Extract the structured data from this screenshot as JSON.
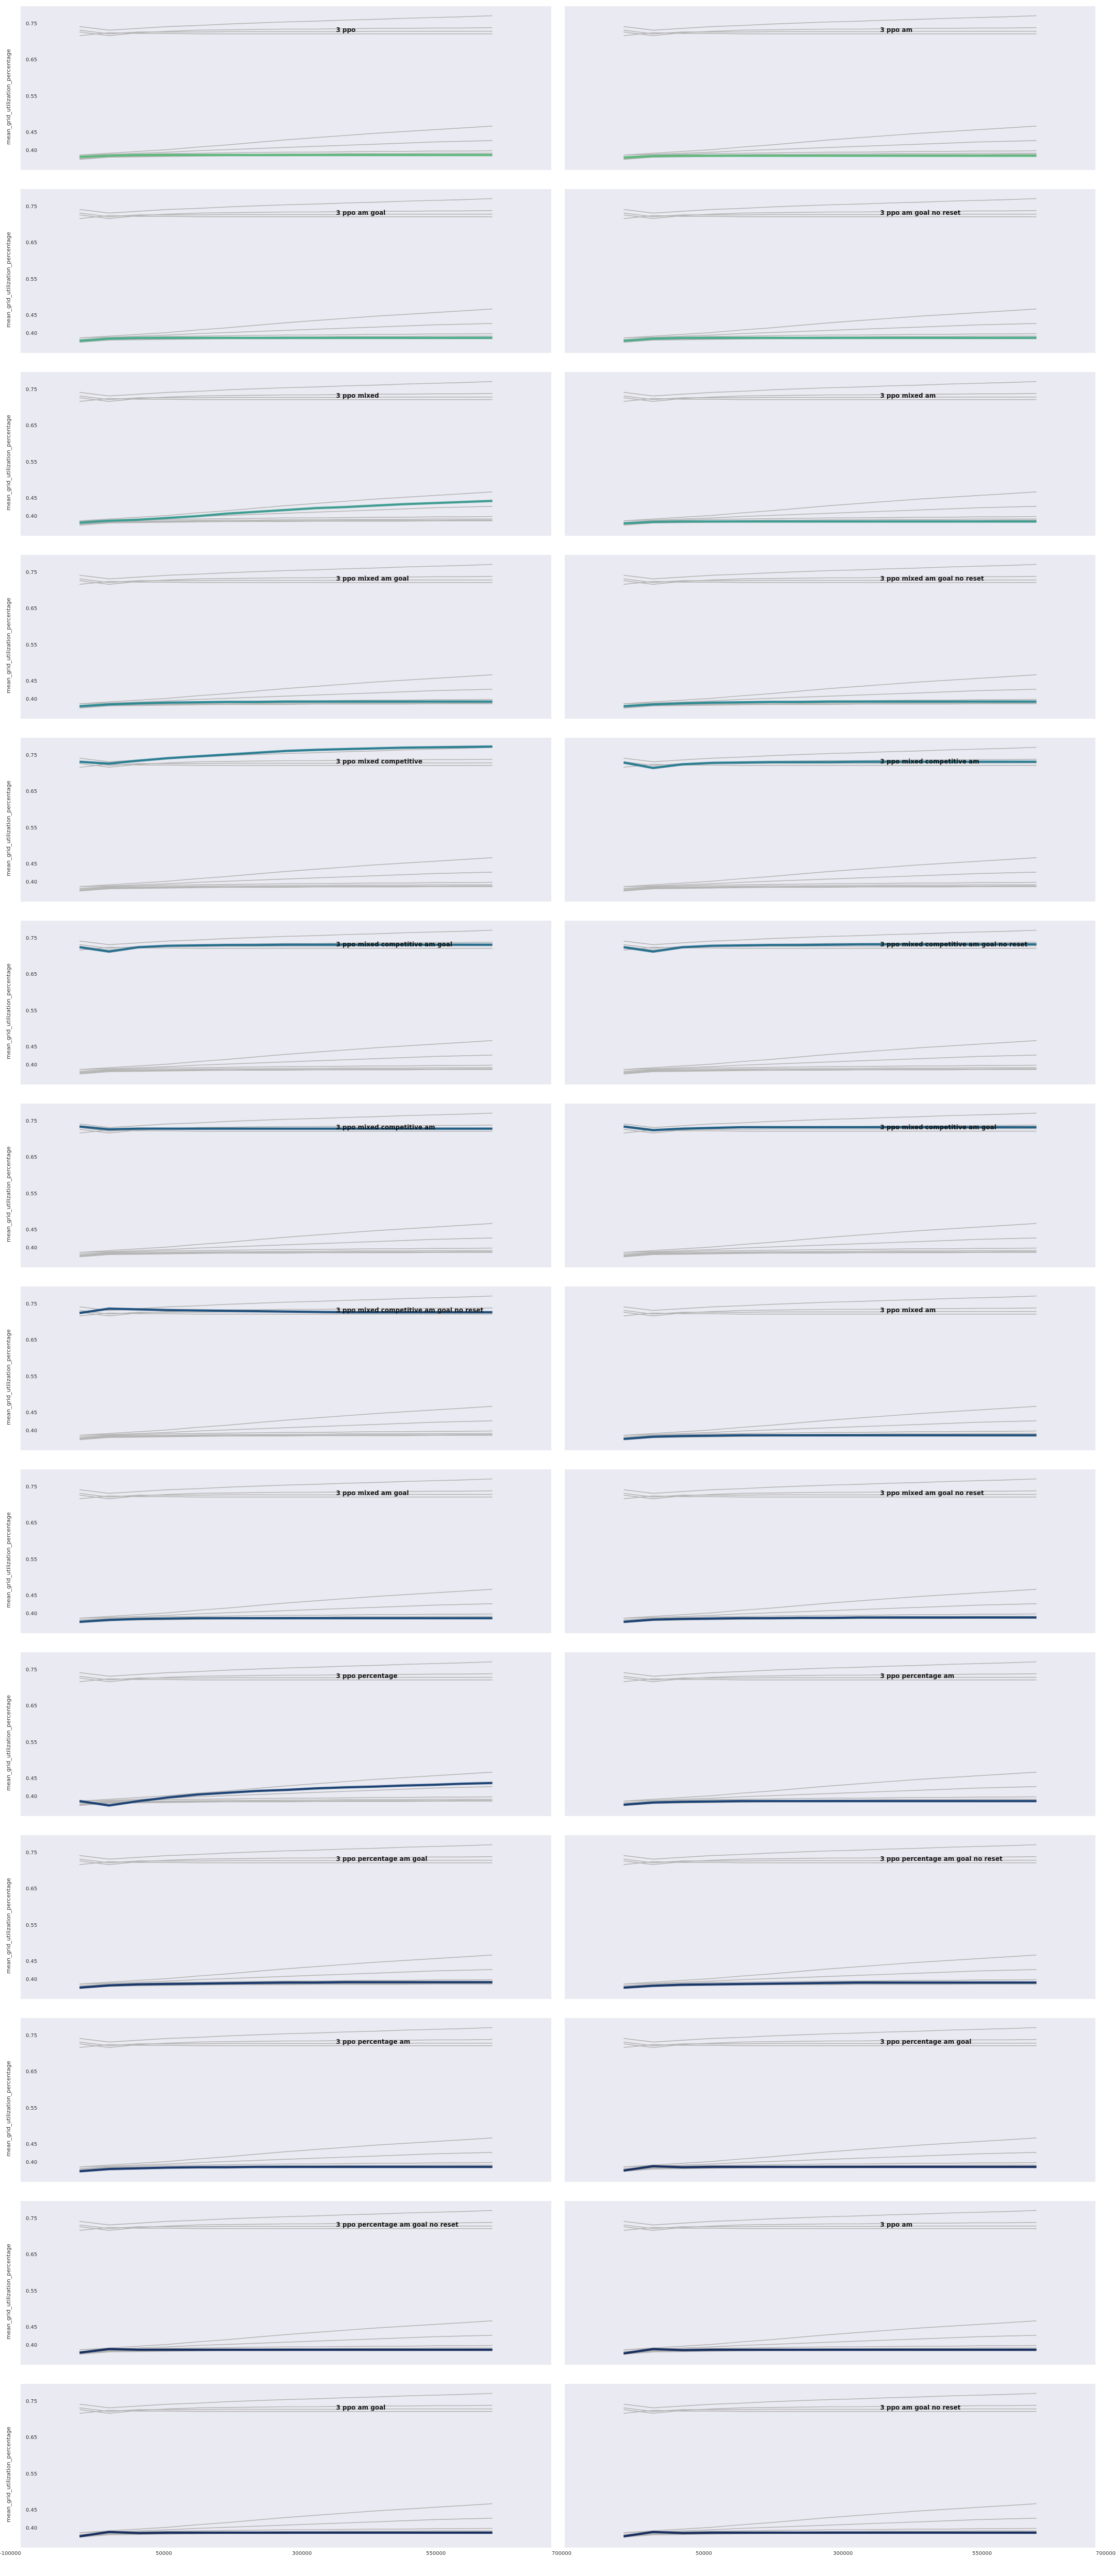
{
  "chart_data": {
    "type": "line",
    "ylabel": "mean_grid_utilization_percentage",
    "y_ticks": [
      "0.40",
      "0.45",
      "0.55",
      "0.65",
      "0.75"
    ],
    "x_ticks": [
      "-100000",
      "50000",
      "300000",
      "550000",
      "700000"
    ],
    "x_ticks_tail": "0",
    "highlight_colors": [
      "#5fb87e",
      "#4cab8a",
      "#3e9c91",
      "#2f8a93",
      "#2a7d91",
      "#256d8c",
      "#225e84",
      "#1f4f7b",
      "#1c4374",
      "#19386a",
      "#172e5e"
    ],
    "background_color": "#eaeaf2",
    "panels": [
      {
        "title": "3 ppo",
        "highlight": 0
      },
      {
        "title": "3 ppo am",
        "highlight": 0
      },
      {
        "title": "3 ppo am goal",
        "highlight": 1
      },
      {
        "title": "3 ppo am goal no reset",
        "highlight": 1
      },
      {
        "title": "3 ppo mixed",
        "highlight": 2
      },
      {
        "title": "3 ppo mixed am",
        "highlight": 2
      },
      {
        "title": "3 ppo mixed am goal",
        "highlight": 3
      },
      {
        "title": "3 ppo mixed am goal no reset",
        "highlight": 3
      },
      {
        "title": "3 ppo mixed competitive",
        "highlight": 4
      },
      {
        "title": "3 ppo mixed competitive am",
        "highlight": 4
      },
      {
        "title": "3 ppo mixed competitive am goal",
        "highlight": 5
      },
      {
        "title": "3 ppo mixed competitive am goal no reset",
        "highlight": 5
      },
      {
        "title": "3 ppo mixed competitive am",
        "highlight": 6
      },
      {
        "title": "3 ppo mixed competitive am goal",
        "highlight": 6
      },
      {
        "title": "3 ppo mixed competitive am goal no reset",
        "highlight": 7
      },
      {
        "title": "3 ppo mixed am",
        "highlight": 7
      },
      {
        "title": "3 ppo mixed am goal",
        "highlight": 7
      },
      {
        "title": "3 ppo mixed am goal no reset",
        "highlight": 8
      },
      {
        "title": "3 ppo percentage",
        "highlight": 8
      },
      {
        "title": "3 ppo percentage am",
        "highlight": 8
      },
      {
        "title": "3 ppo percentage am goal",
        "highlight": 9
      },
      {
        "title": "3 ppo percentage am goal no reset",
        "highlight": 9
      },
      {
        "title": "3 ppo percentage am",
        "highlight": 9
      },
      {
        "title": "3 ppo percentage am goal",
        "highlight": 10
      },
      {
        "title": "3 ppo percentage am goal no reset",
        "highlight": 10
      },
      {
        "title": "3 ppo am",
        "highlight": 10
      },
      {
        "title": "3 ppo am goal",
        "highlight": 10
      },
      {
        "title": "3 ppo am goal no reset",
        "highlight": 10
      }
    ],
    "x": [
      0,
      50000,
      100000,
      150000,
      200000,
      250000,
      300000,
      350000,
      400000,
      450000,
      500000,
      550000,
      600000,
      650000,
      700000
    ],
    "background_series": [
      [
        0.745,
        0.735,
        0.74,
        0.745,
        0.748,
        0.752,
        0.755,
        0.758,
        0.76,
        0.763,
        0.765,
        0.768,
        0.77,
        0.772,
        0.775
      ],
      [
        0.73,
        0.72,
        0.728,
        0.732,
        0.735,
        0.736,
        0.737,
        0.738,
        0.738,
        0.739,
        0.74,
        0.74,
        0.741,
        0.741,
        0.742
      ],
      [
        0.735,
        0.725,
        0.73,
        0.73,
        0.73,
        0.731,
        0.731,
        0.731,
        0.731,
        0.731,
        0.732,
        0.732,
        0.732,
        0.732,
        0.732
      ],
      [
        0.72,
        0.728,
        0.726,
        0.726,
        0.725,
        0.725,
        0.725,
        0.725,
        0.725,
        0.725,
        0.725,
        0.725,
        0.725,
        0.725,
        0.725
      ],
      [
        0.39,
        0.395,
        0.4,
        0.405,
        0.412,
        0.418,
        0.425,
        0.432,
        0.438,
        0.444,
        0.45,
        0.455,
        0.46,
        0.465,
        0.47
      ],
      [
        0.39,
        0.392,
        0.395,
        0.398,
        0.402,
        0.405,
        0.408,
        0.411,
        0.414,
        0.417,
        0.42,
        0.423,
        0.426,
        0.428,
        0.43
      ],
      [
        0.385,
        0.39,
        0.392,
        0.394,
        0.395,
        0.396,
        0.397,
        0.398,
        0.398,
        0.399,
        0.4,
        0.4,
        0.401,
        0.401,
        0.402
      ],
      [
        0.382,
        0.388,
        0.389,
        0.39,
        0.391,
        0.392,
        0.392,
        0.393,
        0.393,
        0.394,
        0.394,
        0.394,
        0.395,
        0.395,
        0.395
      ],
      [
        0.38,
        0.386,
        0.387,
        0.388,
        0.389,
        0.389,
        0.39,
        0.39,
        0.39,
        0.391,
        0.391,
        0.391,
        0.391,
        0.392,
        0.392
      ],
      [
        0.378,
        0.384,
        0.385,
        0.386,
        0.387,
        0.388,
        0.388,
        0.388,
        0.389,
        0.389,
        0.389,
        0.389,
        0.39,
        0.39,
        0.39
      ]
    ],
    "highlight_series": [
      [
        0.385,
        0.388,
        0.39,
        0.39,
        0.39,
        0.39,
        0.39,
        0.39,
        0.39,
        0.39,
        0.39,
        0.39,
        0.39,
        0.39,
        0.39
      ],
      [
        0.383,
        0.387,
        0.388,
        0.388,
        0.388,
        0.388,
        0.388,
        0.388,
        0.388,
        0.388,
        0.388,
        0.388,
        0.388,
        0.388,
        0.388
      ],
      [
        0.382,
        0.388,
        0.39,
        0.39,
        0.39,
        0.39,
        0.39,
        0.39,
        0.39,
        0.39,
        0.39,
        0.39,
        0.39,
        0.39,
        0.39
      ],
      [
        0.382,
        0.388,
        0.39,
        0.39,
        0.39,
        0.39,
        0.39,
        0.39,
        0.39,
        0.39,
        0.39,
        0.39,
        0.39,
        0.39,
        0.39
      ],
      [
        0.385,
        0.39,
        0.393,
        0.398,
        0.403,
        0.41,
        0.415,
        0.42,
        0.425,
        0.428,
        0.432,
        0.436,
        0.439,
        0.442,
        0.445
      ],
      [
        0.383,
        0.387,
        0.388,
        0.388,
        0.388,
        0.388,
        0.388,
        0.388,
        0.388,
        0.388,
        0.388,
        0.388,
        0.388,
        0.388,
        0.388
      ],
      [
        0.383,
        0.388,
        0.391,
        0.393,
        0.394,
        0.395,
        0.395,
        0.396,
        0.396,
        0.396,
        0.396,
        0.396,
        0.396,
        0.396,
        0.396
      ],
      [
        0.383,
        0.388,
        0.391,
        0.393,
        0.394,
        0.395,
        0.395,
        0.396,
        0.396,
        0.396,
        0.396,
        0.396,
        0.396,
        0.396,
        0.396
      ],
      [
        0.735,
        0.73,
        0.738,
        0.745,
        0.75,
        0.755,
        0.76,
        0.765,
        0.768,
        0.77,
        0.772,
        0.774,
        0.775,
        0.776,
        0.777
      ],
      [
        0.733,
        0.718,
        0.728,
        0.732,
        0.733,
        0.734,
        0.734,
        0.734,
        0.735,
        0.735,
        0.735,
        0.735,
        0.735,
        0.735,
        0.735
      ],
      [
        0.728,
        0.716,
        0.728,
        0.732,
        0.733,
        0.734,
        0.734,
        0.735,
        0.735,
        0.735,
        0.735,
        0.735,
        0.735,
        0.735,
        0.735
      ],
      [
        0.728,
        0.716,
        0.728,
        0.732,
        0.733,
        0.734,
        0.734,
        0.735,
        0.736,
        0.736,
        0.736,
        0.736,
        0.736,
        0.736,
        0.736
      ],
      [
        0.738,
        0.73,
        0.732,
        0.732,
        0.732,
        0.732,
        0.732,
        0.732,
        0.732,
        0.732,
        0.732,
        0.732,
        0.732,
        0.732,
        0.732
      ],
      [
        0.738,
        0.728,
        0.732,
        0.734,
        0.736,
        0.736,
        0.736,
        0.736,
        0.736,
        0.736,
        0.736,
        0.736,
        0.736,
        0.736,
        0.736
      ],
      [
        0.728,
        0.74,
        0.738,
        0.736,
        0.735,
        0.734,
        0.733,
        0.732,
        0.731,
        0.73,
        0.73,
        0.73,
        0.73,
        0.73,
        0.73
      ],
      [
        0.38,
        0.386,
        0.388,
        0.389,
        0.39,
        0.39,
        0.39,
        0.39,
        0.39,
        0.39,
        0.39,
        0.39,
        0.39,
        0.39,
        0.39
      ],
      [
        0.38,
        0.385,
        0.388,
        0.389,
        0.39,
        0.39,
        0.39,
        0.39,
        0.39,
        0.39,
        0.39,
        0.39,
        0.39,
        0.39,
        0.39
      ],
      [
        0.38,
        0.386,
        0.388,
        0.389,
        0.39,
        0.39,
        0.391,
        0.391,
        0.392,
        0.392,
        0.392,
        0.392,
        0.392,
        0.392,
        0.392
      ],
      [
        0.39,
        0.378,
        0.39,
        0.4,
        0.408,
        0.413,
        0.418,
        0.421,
        0.425,
        0.428,
        0.43,
        0.433,
        0.435,
        0.438,
        0.44
      ],
      [
        0.38,
        0.386,
        0.388,
        0.389,
        0.39,
        0.39,
        0.39,
        0.39,
        0.39,
        0.39,
        0.39,
        0.39,
        0.39,
        0.39,
        0.39
      ],
      [
        0.38,
        0.386,
        0.389,
        0.39,
        0.391,
        0.392,
        0.393,
        0.394,
        0.394,
        0.395,
        0.395,
        0.395,
        0.395,
        0.395,
        0.395
      ],
      [
        0.38,
        0.385,
        0.388,
        0.389,
        0.39,
        0.391,
        0.392,
        0.393,
        0.394,
        0.394,
        0.394,
        0.394,
        0.394,
        0.394,
        0.394
      ],
      [
        0.378,
        0.384,
        0.386,
        0.388,
        0.389,
        0.389,
        0.39,
        0.39,
        0.39,
        0.39,
        0.39,
        0.39,
        0.39,
        0.39,
        0.39
      ],
      [
        0.38,
        0.392,
        0.389,
        0.39,
        0.39,
        0.39,
        0.39,
        0.39,
        0.39,
        0.39,
        0.39,
        0.39,
        0.39,
        0.39,
        0.39
      ],
      [
        0.382,
        0.392,
        0.39,
        0.39,
        0.39,
        0.39,
        0.39,
        0.39,
        0.39,
        0.39,
        0.39,
        0.39,
        0.39,
        0.39,
        0.39
      ],
      [
        0.38,
        0.392,
        0.389,
        0.39,
        0.39,
        0.39,
        0.39,
        0.39,
        0.39,
        0.39,
        0.39,
        0.39,
        0.39,
        0.39,
        0.39
      ],
      [
        0.38,
        0.392,
        0.389,
        0.39,
        0.39,
        0.39,
        0.39,
        0.39,
        0.39,
        0.39,
        0.39,
        0.39,
        0.39,
        0.39,
        0.39
      ],
      [
        0.38,
        0.392,
        0.389,
        0.39,
        0.39,
        0.39,
        0.39,
        0.39,
        0.39,
        0.39,
        0.39,
        0.39,
        0.39,
        0.39,
        0.39
      ]
    ]
  }
}
